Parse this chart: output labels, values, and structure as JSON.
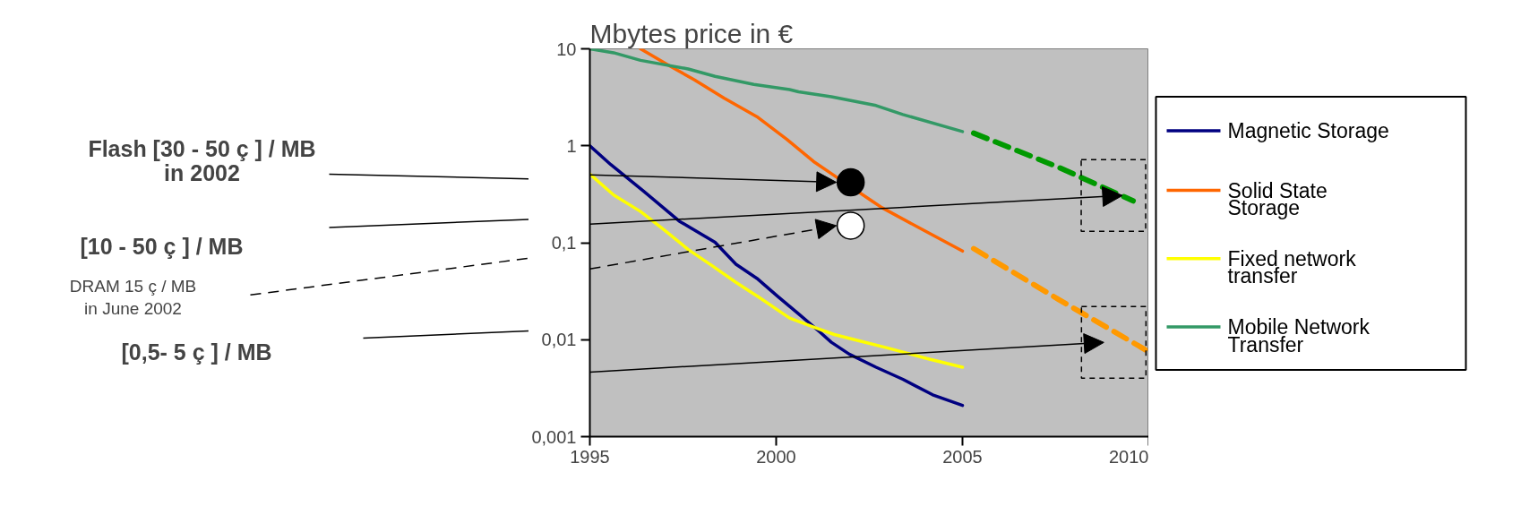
{
  "chart_data": {
    "type": "line",
    "title": "Mbytes price in €",
    "log": true,
    "grid": false,
    "legend": "right",
    "line_style": "solid",
    "xlim": [
      1995,
      2010
    ],
    "xticks": [
      1995,
      2000,
      2005,
      2010
    ],
    "ylim": [
      0.001,
      10
    ],
    "yticks": [
      {
        "value": 10,
        "label": "10"
      },
      {
        "value": 1,
        "label": "1"
      },
      {
        "value": 0.1,
        "label": "0,1"
      },
      {
        "value": 0.01,
        "label": "0,01"
      },
      {
        "value": 0.001,
        "label": "0,001"
      }
    ],
    "series": [
      {
        "name": "Magnetic Storage",
        "color": "#000080",
        "x": [
          1995,
          1995.56,
          1996.44,
          1997.4,
          1998.36,
          1998.92,
          1999.48,
          2000.04,
          2000.6,
          2001.16,
          2001.48,
          2001.96,
          2002.68,
          2003.4,
          2004.2,
          2005
        ],
        "values": [
          1,
          0.64,
          0.34,
          0.167,
          0.101,
          0.06,
          0.043,
          0.028,
          0.0185,
          0.0121,
          0.0094,
          0.0071,
          0.0052,
          0.0039,
          0.0027,
          0.0021
        ]
      },
      {
        "name": "Solid State Storage",
        "color": "#ff6600",
        "x": [
          1996.36,
          1997.16,
          1997.8,
          1998.6,
          1999.48,
          2000.28,
          2001,
          2001.5,
          2002.6,
          2002.84,
          2003.8,
          2005
        ],
        "values": [
          10,
          6.6,
          4.8,
          3.1,
          2.0,
          1.17,
          0.69,
          0.51,
          0.265,
          0.23,
          0.145,
          0.082
        ]
      },
      {
        "name": "Fixed network transfer",
        "color": "#ffff00",
        "x": [
          1995,
          1995.64,
          1996.36,
          1997,
          1997.64,
          1998.28,
          1998.92,
          1999.56,
          2000.36,
          2001,
          2001.56,
          2002.2,
          2003,
          2004.04,
          2005
        ],
        "values": [
          0.51,
          0.31,
          0.21,
          0.135,
          0.085,
          0.058,
          0.039,
          0.027,
          0.0167,
          0.0135,
          0.0113,
          0.0098,
          0.0082,
          0.0064,
          0.0052
        ]
      },
      {
        "name": "Mobile Network Transfer",
        "color": "#339966",
        "x": [
          1995,
          1995.64,
          1996.36,
          1997.64,
          1998.36,
          1999.4,
          2000.36,
          2000.6,
          2001.48,
          2002.68,
          2003.4,
          2005
        ],
        "values": [
          10,
          9.1,
          7.6,
          6.2,
          5.2,
          4.3,
          3.8,
          3.6,
          3.2,
          2.6,
          2.1,
          1.4
        ]
      },
      {
        "color": "#ff9900",
        "line_style": "dashed",
        "x": [
          2005.3,
          2007.58,
          2009.9
        ],
        "values": [
          0.087,
          0.026,
          0.0079
        ]
      },
      {
        "color": "#009900",
        "line_style": "dashed",
        "x": [
          2005.3,
          2007.58,
          2009.58
        ],
        "values": [
          1.35,
          0.6,
          0.27
        ]
      },
      {
        "type": "scatter",
        "marker": "circle",
        "color": "#000000",
        "x": [
          2002
        ],
        "values": [
          0.42
        ]
      },
      {
        "type": "scatter",
        "marker": "circle",
        "color": "#ffffff",
        "x": [
          2002
        ],
        "values": [
          0.15
        ]
      }
    ],
    "annotations": [
      "Flash [30 - 50 ç ] / MB\nin 2002",
      "[10 - 50 ç ] / MB",
      "DRAM 15 ç / MB\nin June 2002",
      "[0,5- 5 ç ] / MB"
    ]
  }
}
